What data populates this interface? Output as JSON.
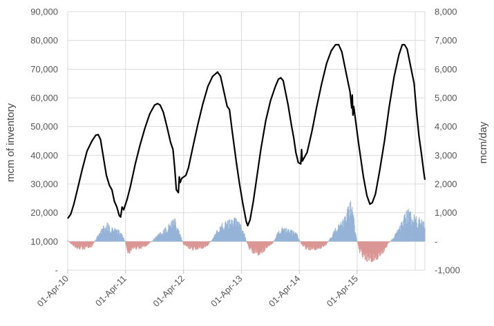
{
  "chart_data": {
    "type": "line",
    "xlabel": "",
    "ylabel_left": "mcm of inventory",
    "ylabel_right": "mcm/day",
    "ylim_left": [
      0,
      90000
    ],
    "ylim_right": [
      -1000,
      8000
    ],
    "x_range": [
      "2010-04-01",
      "2016-06-01"
    ],
    "grid": true,
    "x_ticks": [
      "01-Apr-10",
      "01-Apr-11",
      "01-Apr-12",
      "01-Apr-13",
      "01-Apr-14",
      "01-Apr-15"
    ],
    "y_ticks_left": [
      "-",
      "10,000",
      "20,000",
      "30,000",
      "40,000",
      "50,000",
      "60,000",
      "70,000",
      "80,000",
      "90,000"
    ],
    "y_ticks_right": [
      "-1,000",
      "-",
      "1,000",
      "2,000",
      "3,000",
      "4,000",
      "5,000",
      "6,000",
      "7,000",
      "8,000"
    ],
    "colors": {
      "inventory": "#000000",
      "injection": "#95b3d7",
      "withdrawal": "#da9694",
      "grid": "#d9d9d9"
    },
    "series": [
      {
        "axis": "left",
        "style": "line",
        "points": [
          [
            "2010-04-01",
            18000
          ],
          [
            "2010-04-20",
            19500
          ],
          [
            "2010-05-10",
            23000
          ],
          [
            "2010-06-01",
            28000
          ],
          [
            "2010-07-01",
            35000
          ],
          [
            "2010-08-01",
            41500
          ],
          [
            "2010-09-01",
            45000
          ],
          [
            "2010-09-25",
            47000
          ],
          [
            "2010-10-10",
            47200
          ],
          [
            "2010-10-25",
            45500
          ],
          [
            "2010-11-10",
            40000
          ],
          [
            "2010-12-01",
            33000
          ],
          [
            "2010-12-20",
            29500
          ],
          [
            "2011-01-05",
            28000
          ],
          [
            "2011-01-20",
            24000
          ],
          [
            "2011-02-05",
            22000
          ],
          [
            "2011-02-20",
            19000
          ],
          [
            "2011-03-01",
            18500
          ],
          [
            "2011-03-10",
            22000
          ],
          [
            "2011-03-20",
            21000
          ],
          [
            "2011-04-10",
            24500
          ],
          [
            "2011-05-01",
            29000
          ],
          [
            "2011-06-01",
            37000
          ],
          [
            "2011-07-01",
            43500
          ],
          [
            "2011-08-01",
            49500
          ],
          [
            "2011-09-01",
            54500
          ],
          [
            "2011-10-01",
            57500
          ],
          [
            "2011-10-20",
            58000
          ],
          [
            "2011-11-05",
            57500
          ],
          [
            "2011-11-25",
            55000
          ],
          [
            "2011-12-20",
            49500
          ],
          [
            "2012-01-10",
            44500
          ],
          [
            "2012-01-25",
            42000
          ],
          [
            "2012-02-05",
            35500
          ],
          [
            "2012-02-15",
            28000
          ],
          [
            "2012-02-28",
            27000
          ],
          [
            "2012-03-05",
            32500
          ],
          [
            "2012-03-10",
            30500
          ],
          [
            "2012-03-20",
            32000
          ],
          [
            "2012-04-15",
            33000
          ],
          [
            "2012-05-01",
            35500
          ],
          [
            "2012-06-01",
            43500
          ],
          [
            "2012-07-01",
            51000
          ],
          [
            "2012-08-01",
            58000
          ],
          [
            "2012-09-01",
            64000
          ],
          [
            "2012-10-01",
            67500
          ],
          [
            "2012-11-01",
            69000
          ],
          [
            "2012-11-20",
            67500
          ],
          [
            "2012-12-10",
            62500
          ],
          [
            "2013-01-01",
            57000
          ],
          [
            "2013-01-15",
            56000
          ],
          [
            "2013-02-01",
            48500
          ],
          [
            "2013-03-01",
            37000
          ],
          [
            "2013-03-20",
            30000
          ],
          [
            "2013-04-10",
            23000
          ],
          [
            "2013-05-01",
            17000
          ],
          [
            "2013-05-10",
            15500
          ],
          [
            "2013-05-25",
            17500
          ],
          [
            "2013-06-15",
            24000
          ],
          [
            "2013-07-10",
            33500
          ],
          [
            "2013-08-01",
            42000
          ],
          [
            "2013-09-01",
            52000
          ],
          [
            "2013-10-01",
            59000
          ],
          [
            "2013-11-01",
            64000
          ],
          [
            "2013-11-20",
            66500
          ],
          [
            "2013-12-05",
            67000
          ],
          [
            "2013-12-20",
            66000
          ],
          [
            "2014-01-20",
            57500
          ],
          [
            "2014-02-10",
            50500
          ],
          [
            "2014-02-25",
            46000
          ],
          [
            "2014-03-10",
            41000
          ],
          [
            "2014-03-25",
            37500
          ],
          [
            "2014-04-10",
            37000
          ],
          [
            "2014-04-15",
            42000
          ],
          [
            "2014-04-20",
            38000
          ],
          [
            "2014-05-20",
            41000
          ],
          [
            "2014-06-20",
            48500
          ],
          [
            "2014-07-20",
            57000
          ],
          [
            "2014-08-20",
            65000
          ],
          [
            "2014-09-20",
            72000
          ],
          [
            "2014-10-20",
            76500
          ],
          [
            "2014-11-15",
            78500
          ],
          [
            "2014-12-05",
            78500
          ],
          [
            "2014-12-25",
            76000
          ],
          [
            "2015-01-20",
            69000
          ],
          [
            "2015-02-15",
            62000
          ],
          [
            "2015-02-25",
            56500
          ],
          [
            "2015-03-01",
            61000
          ],
          [
            "2015-03-05",
            54000
          ],
          [
            "2015-03-10",
            57000
          ],
          [
            "2015-04-10",
            44000
          ],
          [
            "2015-05-10",
            32500
          ],
          [
            "2015-06-01",
            26000
          ],
          [
            "2015-06-20",
            23000
          ],
          [
            "2015-07-05",
            23500
          ],
          [
            "2015-07-25",
            26500
          ],
          [
            "2015-08-20",
            34500
          ],
          [
            "2015-09-20",
            45000
          ],
          [
            "2015-10-20",
            57000
          ],
          [
            "2015-11-20",
            67500
          ],
          [
            "2015-12-20",
            75000
          ],
          [
            "2016-01-10",
            78500
          ],
          [
            "2016-01-25",
            78500
          ],
          [
            "2016-02-10",
            77000
          ],
          [
            "2016-03-01",
            71500
          ],
          [
            "2016-03-25",
            65000
          ],
          [
            "2016-04-10",
            54500
          ],
          [
            "2016-04-25",
            46500
          ],
          [
            "2016-05-10",
            40500
          ],
          [
            "2016-05-25",
            34000
          ],
          [
            "2016-06-01",
            31500
          ]
        ]
      },
      {
        "axis": "right",
        "style": "bar",
        "envelope": [
          [
            "2010-04-01",
            50
          ],
          [
            "2010-05-01",
            -150
          ],
          [
            "2010-06-01",
            -280
          ],
          [
            "2010-07-01",
            -300
          ],
          [
            "2010-08-01",
            -250
          ],
          [
            "2010-09-01",
            -200
          ],
          [
            "2010-10-01",
            150
          ],
          [
            "2010-11-01",
            450
          ],
          [
            "2010-12-01",
            700
          ],
          [
            "2011-01-01",
            500
          ],
          [
            "2011-02-15",
            450
          ],
          [
            "2011-03-20",
            150
          ],
          [
            "2011-04-05",
            -150
          ],
          [
            "2011-04-20",
            -550
          ],
          [
            "2011-05-15",
            -250
          ],
          [
            "2011-06-15",
            -300
          ],
          [
            "2011-07-15",
            -250
          ],
          [
            "2011-08-15",
            -150
          ],
          [
            "2011-09-20",
            50
          ],
          [
            "2011-10-20",
            250
          ],
          [
            "2011-11-20",
            400
          ],
          [
            "2011-12-20",
            550
          ],
          [
            "2012-01-20",
            750
          ],
          [
            "2012-02-05",
            900
          ],
          [
            "2012-02-20",
            500
          ],
          [
            "2012-03-10",
            300
          ],
          [
            "2012-04-01",
            -120
          ],
          [
            "2012-05-01",
            -250
          ],
          [
            "2012-06-01",
            -330
          ],
          [
            "2012-07-01",
            -300
          ],
          [
            "2012-08-01",
            -250
          ],
          [
            "2012-09-01",
            -150
          ],
          [
            "2012-10-01",
            100
          ],
          [
            "2012-11-01",
            450
          ],
          [
            "2012-12-01",
            650
          ],
          [
            "2013-01-01",
            750
          ],
          [
            "2013-02-01",
            800
          ],
          [
            "2013-03-01",
            850
          ],
          [
            "2013-04-15",
            400
          ],
          [
            "2013-05-15",
            -250
          ],
          [
            "2013-06-15",
            -450
          ],
          [
            "2013-07-15",
            -500
          ],
          [
            "2013-08-15",
            -400
          ],
          [
            "2013-09-15",
            -200
          ],
          [
            "2013-10-15",
            -80
          ],
          [
            "2013-11-15",
            350
          ],
          [
            "2013-12-15",
            500
          ],
          [
            "2014-01-15",
            450
          ],
          [
            "2014-02-15",
            400
          ],
          [
            "2014-03-15",
            300
          ],
          [
            "2014-04-15",
            -120
          ],
          [
            "2014-05-15",
            -300
          ],
          [
            "2014-06-15",
            -320
          ],
          [
            "2014-07-15",
            -300
          ],
          [
            "2014-08-15",
            -250
          ],
          [
            "2014-09-15",
            -150
          ],
          [
            "2014-10-15",
            150
          ],
          [
            "2014-11-15",
            500
          ],
          [
            "2014-12-15",
            650
          ],
          [
            "2015-01-15",
            900
          ],
          [
            "2015-02-01",
            1200
          ],
          [
            "2015-02-20",
            1450
          ],
          [
            "2015-03-10",
            900
          ],
          [
            "2015-03-25",
            250
          ],
          [
            "2015-04-15",
            -400
          ],
          [
            "2015-05-15",
            -650
          ],
          [
            "2015-06-15",
            -750
          ],
          [
            "2015-07-15",
            -700
          ],
          [
            "2015-08-15",
            -600
          ],
          [
            "2015-09-15",
            -400
          ],
          [
            "2015-10-15",
            -80
          ],
          [
            "2015-11-15",
            150
          ],
          [
            "2015-12-15",
            450
          ],
          [
            "2016-01-15",
            800
          ],
          [
            "2016-02-01",
            1050
          ],
          [
            "2016-02-20",
            1150
          ],
          [
            "2016-03-10",
            1000
          ],
          [
            "2016-04-10",
            900
          ],
          [
            "2016-05-10",
            800
          ],
          [
            "2016-06-01",
            650
          ]
        ]
      }
    ]
  }
}
